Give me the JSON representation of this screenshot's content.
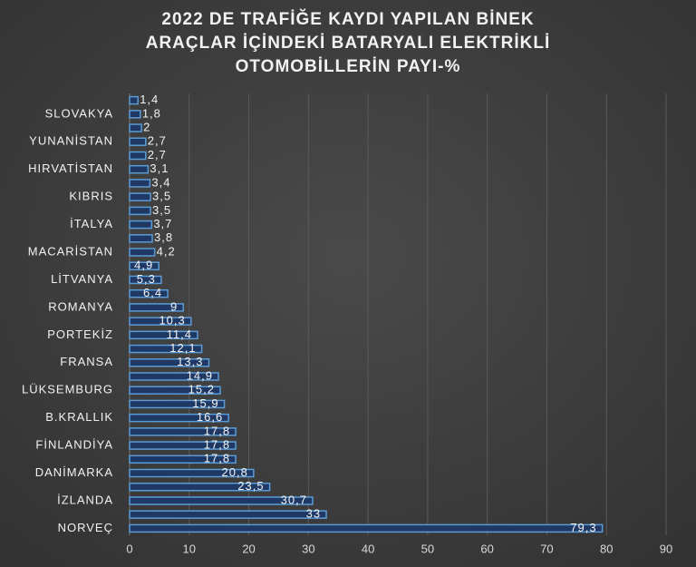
{
  "chart_data": {
    "type": "barh",
    "title": [
      "2022 DE TRAFİĞE KAYDI YAPILAN BİNEK",
      "ARAÇLAR İÇİNDEKİ BATARYALI ELEKTRİKLİ",
      "OTOMOBİLLERİN  PAYI-%"
    ],
    "categories": [
      null,
      "SLOVAKYA",
      null,
      "YUNANİSTAN",
      null,
      "HIRVATİSTAN",
      null,
      "KIBRIS",
      null,
      "İTALYA",
      null,
      "MACARİSTAN",
      null,
      "LİTVANYA",
      null,
      "ROMANYA",
      null,
      "PORTEKİZ",
      null,
      "FRANSA",
      null,
      "LÜKSEMBURG",
      null,
      "B.KRALLIK",
      null,
      "FİNLANDİYA",
      null,
      "DANİMARKA",
      null,
      "İZLANDA",
      null,
      "NORVEÇ"
    ],
    "values": [
      1.4,
      1.8,
      2,
      2.7,
      2.7,
      3.1,
      3.4,
      3.5,
      3.5,
      3.7,
      3.8,
      4.2,
      4.9,
      5.3,
      6.4,
      9,
      10.3,
      11.4,
      12.1,
      13.3,
      14.9,
      15.2,
      15.9,
      16.6,
      17.8,
      17.8,
      17.8,
      20.8,
      23.5,
      30.7,
      33,
      79.3
    ],
    "value_labels": [
      "1,4",
      "1,8",
      "2",
      "2,7",
      "2,7",
      "3,1",
      "3,4",
      "3,5",
      "3,5",
      "3,7",
      "3,8",
      "4,2",
      "4,9",
      "5,3",
      "6,4",
      "9",
      "10,3",
      "11,4",
      "12,1",
      "13,3",
      "14,9",
      "15,2",
      "15,9",
      "16,6",
      "17,8",
      "17,8",
      "17,8",
      "20,8",
      "23,5",
      "30,7",
      "33",
      "79,3"
    ],
    "color": "#1f3864",
    "edge_color": "#5b9bd5",
    "xlim": [
      0,
      90
    ],
    "xticks": [
      0,
      10,
      20,
      30,
      40,
      50,
      60,
      70,
      80,
      90
    ],
    "grid": true
  }
}
